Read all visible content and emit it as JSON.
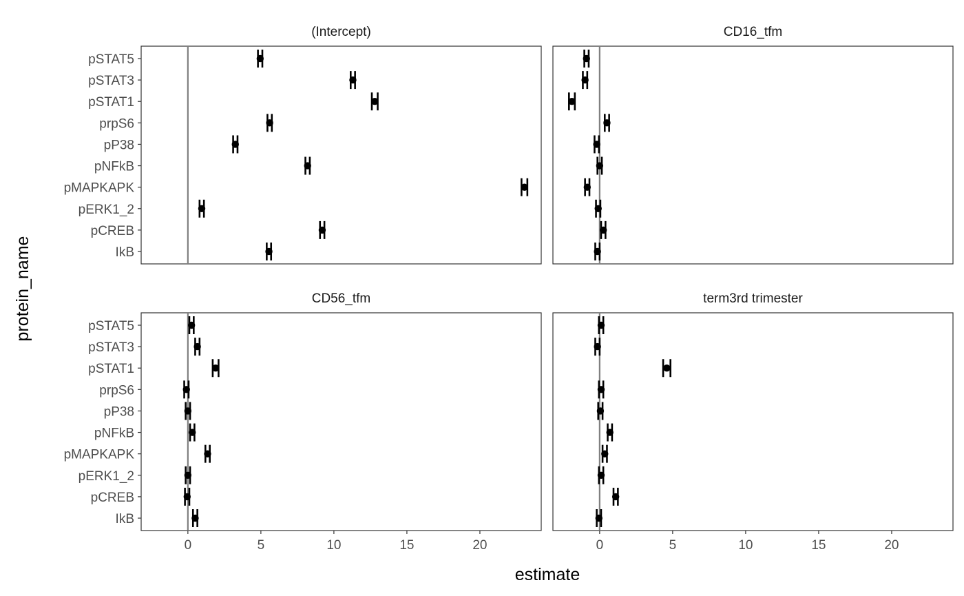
{
  "chart_data": {
    "type": "scatter",
    "subtype": "faceted point estimates with interval bars",
    "xlabel": "estimate",
    "ylabel": "protein_name",
    "xlim": [
      -3.2,
      24.2
    ],
    "xticks": [
      0,
      5,
      10,
      15,
      20
    ],
    "reference_line_x": 0,
    "grid": false,
    "facet_layout": "2x2",
    "colors": {
      "point": "#000000",
      "reference_line": "#7f7f7f",
      "panel_border": "#333333"
    },
    "categories": [
      "pSTAT5",
      "pSTAT3",
      "pSTAT1",
      "prpS6",
      "pP38",
      "pNFkB",
      "pMAPKAPK",
      "pERK1_2",
      "pCREB",
      "IkB"
    ],
    "panels": [
      {
        "title": "(Intercept)",
        "estimates": [
          4.95,
          11.3,
          12.8,
          5.6,
          3.25,
          8.2,
          23.05,
          0.95,
          9.2,
          5.55
        ],
        "lower": [
          4.8,
          11.15,
          12.6,
          5.45,
          3.1,
          8.05,
          22.85,
          0.8,
          9.05,
          5.4
        ],
        "upper": [
          5.1,
          11.45,
          13.0,
          5.75,
          3.4,
          8.35,
          23.25,
          1.1,
          9.35,
          5.7
        ]
      },
      {
        "title": "CD16_tfm",
        "estimates": [
          -0.9,
          -1.0,
          -1.9,
          0.5,
          -0.2,
          0.0,
          -0.85,
          -0.1,
          0.25,
          -0.15
        ],
        "lower": [
          -1.05,
          -1.15,
          -2.1,
          0.35,
          -0.35,
          -0.15,
          -1.0,
          -0.25,
          0.1,
          -0.3
        ],
        "upper": [
          -0.75,
          -0.85,
          -1.7,
          0.65,
          -0.05,
          0.15,
          -0.7,
          0.05,
          0.4,
          0.0
        ]
      },
      {
        "title": "CD56_tfm",
        "estimates": [
          0.25,
          0.65,
          1.9,
          -0.1,
          0.0,
          0.3,
          1.35,
          0.0,
          -0.05,
          0.5
        ],
        "lower": [
          0.1,
          0.5,
          1.7,
          -0.25,
          -0.15,
          0.15,
          1.2,
          -0.15,
          -0.2,
          0.35
        ],
        "upper": [
          0.4,
          0.8,
          2.1,
          0.05,
          0.15,
          0.45,
          1.5,
          0.15,
          0.1,
          0.65
        ]
      },
      {
        "title": "term3rd trimester",
        "estimates": [
          0.1,
          -0.15,
          4.6,
          0.1,
          0.05,
          0.7,
          0.35,
          0.1,
          1.1,
          -0.05
        ],
        "lower": [
          -0.05,
          -0.3,
          4.35,
          -0.05,
          -0.1,
          0.55,
          0.2,
          -0.05,
          0.95,
          -0.2
        ],
        "upper": [
          0.25,
          0.0,
          4.85,
          0.25,
          0.2,
          0.85,
          0.5,
          0.25,
          1.25,
          0.1
        ]
      }
    ]
  }
}
